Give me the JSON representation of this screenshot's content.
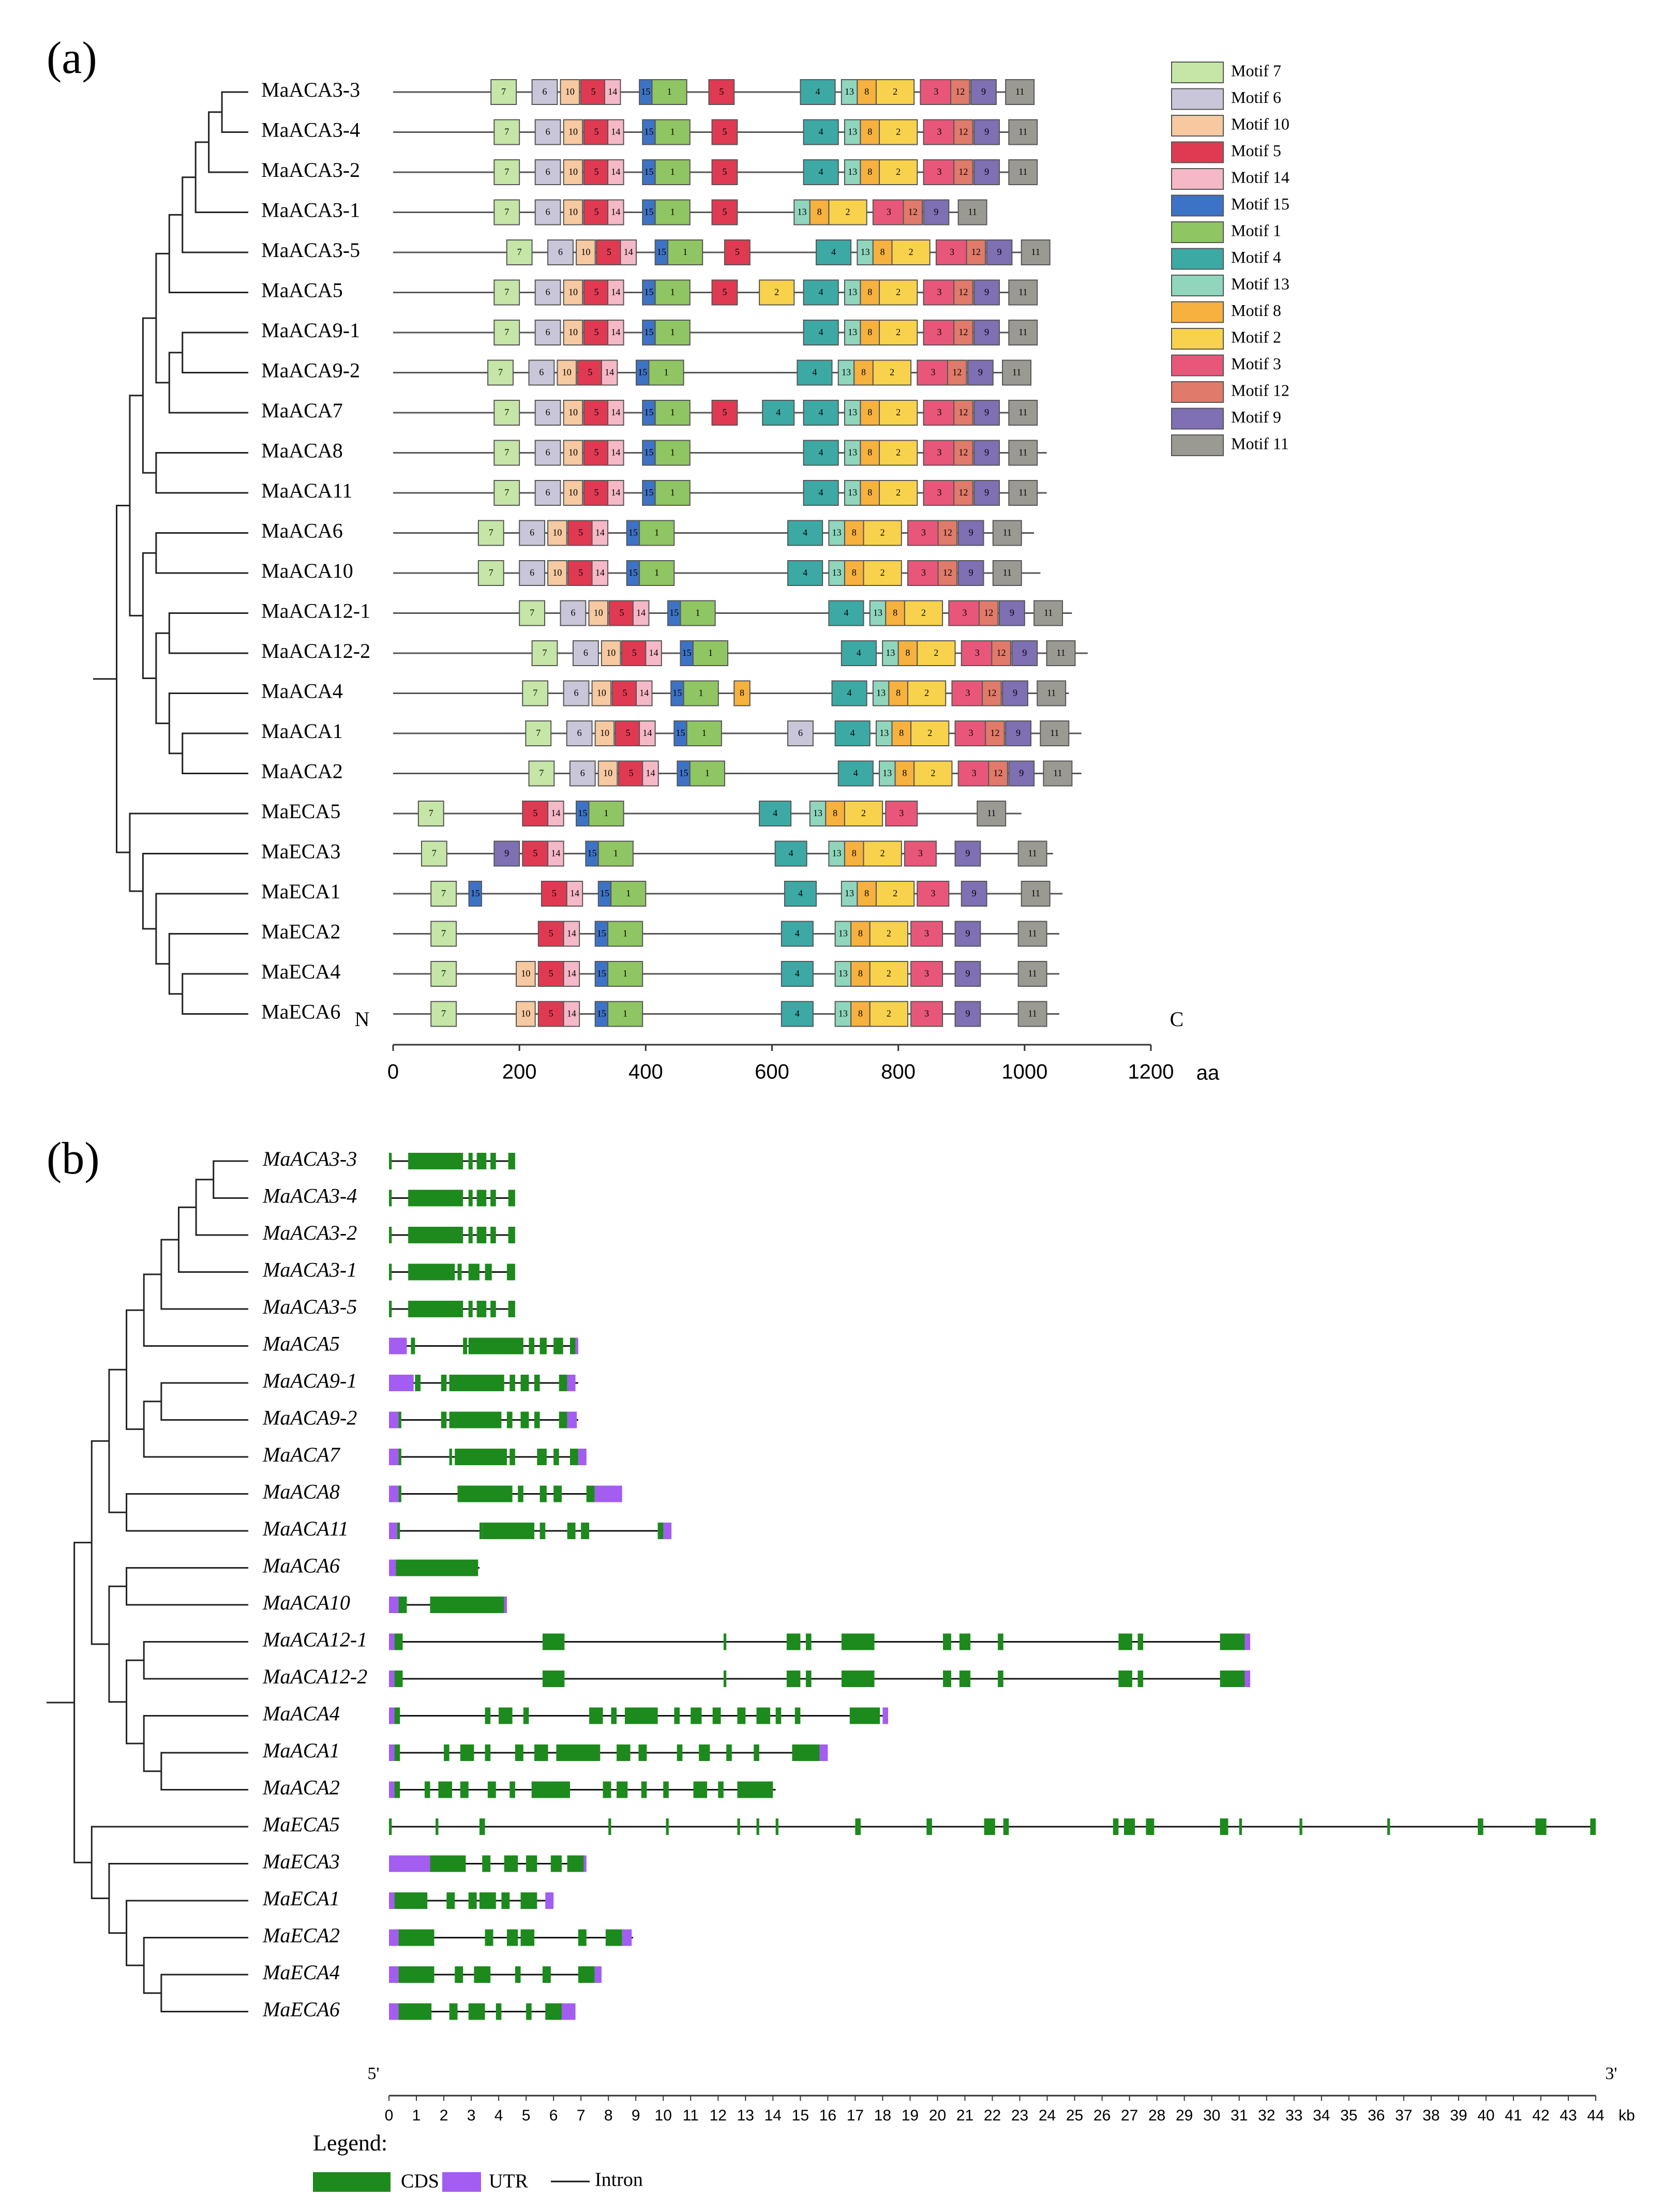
{
  "figure": {
    "panel_a_label": "(a)",
    "panel_b_label": "(b)"
  },
  "motif_panel": {
    "genes": [
      "MaACA3-3",
      "MaACA3-4",
      "MaACA3-2",
      "MaACA3-1",
      "MaACA3-5",
      "MaACA5",
      "MaACA9-1",
      "MaACA9-2",
      "MaACA7",
      "MaACA8",
      "MaACA11",
      "MaACA6",
      "MaACA10",
      "MaACA12-1",
      "MaACA12-2",
      "MaACA4",
      "MaACA1",
      "MaACA2",
      "MaECA5",
      "MaECA3",
      "MaECA1",
      "MaECA2",
      "MaECA4",
      "MaECA6"
    ],
    "protein_length_aa": [
      1015,
      1015,
      1015,
      940,
      1035,
      1015,
      1015,
      1010,
      1015,
      1035,
      1035,
      1015,
      1025,
      1075,
      1100,
      1070,
      1090,
      1090,
      995,
      1045,
      1060,
      1055,
      1055,
      1055
    ],
    "axis": {
      "start_label": "N",
      "end_label": "C",
      "unit": "aa",
      "ticks": [
        "0",
        "200",
        "400",
        "600",
        "800",
        "1000",
        "1200"
      ],
      "min": 0,
      "max": 1200
    },
    "motif_legend": [
      {
        "id": "7",
        "label": "Motif 7",
        "color": "#c5e6a6"
      },
      {
        "id": "6",
        "label": "Motif 6",
        "color": "#c9c6d9"
      },
      {
        "id": "10",
        "label": "Motif 10",
        "color": "#f6c9a0"
      },
      {
        "id": "5",
        "label": "Motif 5",
        "color": "#e03a52"
      },
      {
        "id": "14",
        "label": "Motif 14",
        "color": "#f5b8c6"
      },
      {
        "id": "15",
        "label": "Motif 15",
        "color": "#3d73c6"
      },
      {
        "id": "1",
        "label": "Motif 1",
        "color": "#8fc563"
      },
      {
        "id": "4",
        "label": "Motif 4",
        "color": "#3da9a5"
      },
      {
        "id": "13",
        "label": "Motif 13",
        "color": "#8fd6bd"
      },
      {
        "id": "8",
        "label": "Motif 8",
        "color": "#f6b13e"
      },
      {
        "id": "2",
        "label": "Motif 2",
        "color": "#f8d24c"
      },
      {
        "id": "3",
        "label": "Motif 3",
        "color": "#e8577a"
      },
      {
        "id": "12",
        "label": "Motif 12",
        "color": "#e07a6a"
      },
      {
        "id": "9",
        "label": "Motif 9",
        "color": "#7f6fb3"
      },
      {
        "id": "11",
        "label": "Motif 11",
        "color": "#9a9a93"
      }
    ]
  },
  "gene_structure": {
    "genes": [
      "MaACA3-3",
      "MaACA3-4",
      "MaACA3-2",
      "MaACA3-1",
      "MaACA3-5",
      "MaACA5",
      "MaACA9-1",
      "MaACA9-2",
      "MaACA7",
      "MaACA8",
      "MaACA11",
      "MaACA6",
      "MaACA10",
      "MaACA12-1",
      "MaACA12-2",
      "MaACA4",
      "MaACA1",
      "MaACA2",
      "MaECA5",
      "MaECA3",
      "MaECA1",
      "MaECA2",
      "MaECA4",
      "MaECA6"
    ],
    "gene_length_kb": [
      4.6,
      4.6,
      4.6,
      4.6,
      4.6,
      6.9,
      6.9,
      6.9,
      7.2,
      8.5,
      10.2,
      3.3,
      4.3,
      31.4,
      31.4,
      18.2,
      16.0,
      14.1,
      44.0,
      7.2,
      6.0,
      8.9,
      7.7,
      6.8
    ],
    "axis": {
      "start_label": "5'",
      "end_label": "3'",
      "unit": "kb",
      "ticks": [
        "0",
        "1",
        "2",
        "3",
        "4",
        "5",
        "6",
        "7",
        "8",
        "9",
        "10",
        "11",
        "12",
        "13",
        "14",
        "15",
        "16",
        "17",
        "18",
        "19",
        "20",
        "21",
        "22",
        "23",
        "24",
        "25",
        "26",
        "27",
        "28",
        "29",
        "30",
        "31",
        "32",
        "33",
        "34",
        "35",
        "36",
        "37",
        "38",
        "39",
        "40",
        "41",
        "42",
        "43",
        "44"
      ],
      "min": 0,
      "max": 44
    },
    "legend": {
      "title": "Legend:",
      "cds_label": "CDS",
      "utr_label": "UTR",
      "intron_label": "Intron",
      "cds_color": "#1c8a1c",
      "utr_color": "#a35df0",
      "intron_color": "#111111"
    }
  }
}
